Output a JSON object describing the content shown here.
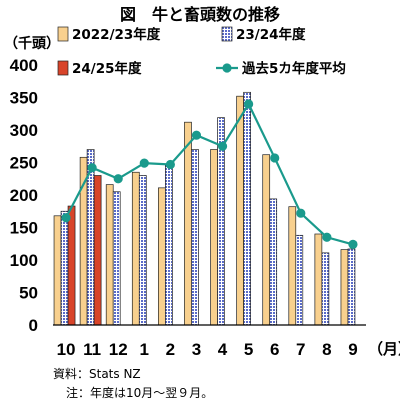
{
  "chart_data": {
    "type": "bar",
    "title": "図　牛と畜頭数の推移",
    "ylabel": "（千頭）",
    "xlabel": "（月）",
    "ylim": [
      0,
      400
    ],
    "yticks": [
      0,
      50,
      100,
      150,
      200,
      250,
      300,
      350,
      400
    ],
    "categories": [
      "10",
      "11",
      "12",
      "1",
      "2",
      "3",
      "4",
      "5",
      "6",
      "7",
      "8",
      "9"
    ],
    "series": [
      {
        "name": "2022/23年度",
        "kind": "bar",
        "color": "#f8d08e",
        "values": [
          168,
          258,
          216,
          235,
          211,
          312,
          270,
          352,
          262,
          182,
          140,
          116
        ]
      },
      {
        "name": "23/24年度",
        "kind": "bar",
        "color": "#9aa3dc",
        "values": [
          175,
          270,
          205,
          230,
          246,
          270,
          319,
          358,
          194,
          138,
          111,
          117
        ]
      },
      {
        "name": "24/25年度",
        "kind": "bar",
        "color": "#d8442a",
        "values": [
          183,
          230,
          null,
          null,
          null,
          null,
          null,
          null,
          null,
          null,
          null,
          null
        ]
      },
      {
        "name": "過去5カ年度平均",
        "kind": "line",
        "color": "#1a9a8c",
        "values": [
          165,
          242,
          225,
          249,
          247,
          292,
          275,
          340,
          257,
          172,
          135,
          124
        ]
      }
    ],
    "legend_placement": "top",
    "grid": false
  },
  "source": "資料：Stats NZ",
  "note": "注：年度は10月～翌９月。"
}
